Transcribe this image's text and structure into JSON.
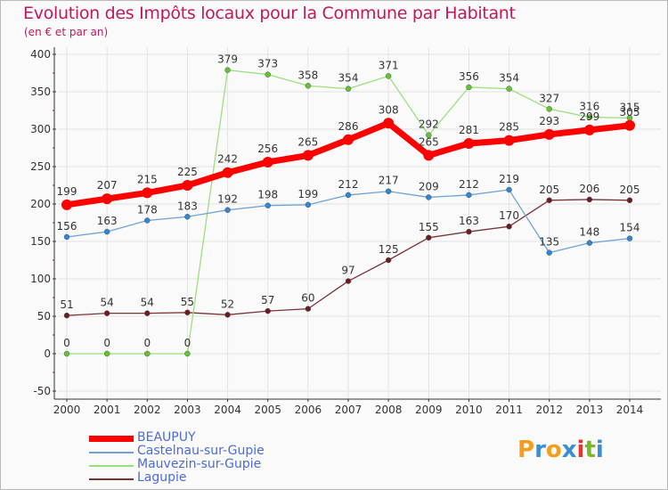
{
  "title": "Evolution des Impôts locaux pour la Commune par Habitant",
  "subtitle": "(en € et par an)",
  "logo": {
    "letters": [
      "P",
      "r",
      "o",
      "x",
      "i",
      "t",
      "i"
    ],
    "colors": [
      "#f59d1c",
      "#3a8fd1",
      "#f59d1c",
      "#3a8fd1",
      "#e7352b",
      "#79b829",
      "#3a8fd1"
    ]
  },
  "chart_data": {
    "type": "line",
    "title": "Evolution des Impôts locaux pour la Commune par Habitant",
    "subtitle": "(en € et par an)",
    "xlabel": "",
    "ylabel": "",
    "ylim": [
      -50,
      400
    ],
    "yticks": [
      -50,
      0,
      50,
      100,
      150,
      200,
      250,
      300,
      350,
      400
    ],
    "categories": [
      "2000",
      "2001",
      "2002",
      "2003",
      "2004",
      "2005",
      "2006",
      "2007",
      "2008",
      "2009",
      "2010",
      "2011",
      "2012",
      "2013",
      "2014"
    ],
    "series": [
      {
        "name": "BEAUPUY",
        "color": "#ff0000",
        "marker": "#ff0000",
        "values": [
          199,
          207,
          215,
          225,
          242,
          256,
          265,
          286,
          308,
          265,
          281,
          285,
          293,
          299,
          305
        ]
      },
      {
        "name": "Castelnau-sur-Gupie",
        "color": "#6fa3d8",
        "marker": "#2f87d3",
        "values": [
          156,
          163,
          178,
          183,
          192,
          198,
          199,
          212,
          217,
          209,
          212,
          219,
          135,
          148,
          154
        ]
      },
      {
        "name": "Mauvezin-sur-Gupie",
        "color": "#9be07f",
        "marker": "#63c431",
        "values": [
          0,
          0,
          0,
          0,
          379,
          373,
          358,
          354,
          371,
          292,
          356,
          354,
          327,
          316,
          315
        ]
      },
      {
        "name": "Lagupie",
        "color": "#7b3436",
        "marker": "#6b1d22",
        "values": [
          51,
          54,
          54,
          55,
          52,
          57,
          60,
          97,
          125,
          155,
          163,
          170,
          205,
          206,
          205
        ]
      }
    ],
    "legend_position": "bottom-left"
  }
}
